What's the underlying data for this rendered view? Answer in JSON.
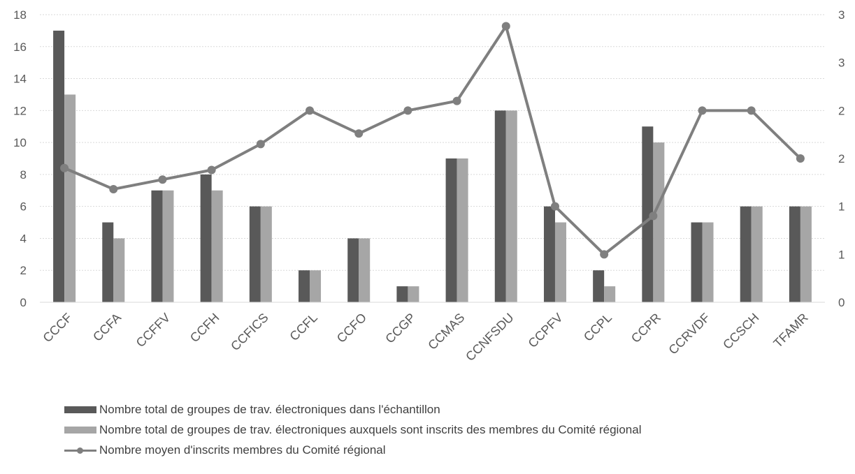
{
  "chart_data": {
    "type": "bar",
    "categories": [
      "CCCF",
      "CCFA",
      "CCFFV",
      "CCFH",
      "CCFICS",
      "CCFL",
      "CCFO",
      "CCGP",
      "CCMAS",
      "CCNFSDU",
      "CCPFV",
      "CCPL",
      "CCPR",
      "CCRVDF",
      "CCSCH",
      "TFAMR"
    ],
    "series": [
      {
        "name": "Nombre total de groupes de trav. électroniques dans  l'échantillon",
        "type": "bar",
        "axis": "left",
        "color": "#595959",
        "values": [
          17,
          5,
          7,
          8,
          6,
          2,
          4,
          1,
          9,
          12,
          6,
          2,
          11,
          5,
          6,
          6
        ]
      },
      {
        "name": "Nombre total de groupes de trav. électroniques auxquels sont inscrits des membres du Comité régional",
        "type": "bar",
        "axis": "left",
        "color": "#a6a6a6",
        "values": [
          13,
          4,
          7,
          7,
          6,
          2,
          4,
          1,
          9,
          12,
          5,
          1,
          10,
          5,
          6,
          6
        ]
      },
      {
        "name": "Nombre moyen d'inscrits membres du Comité régional",
        "type": "line",
        "axis": "right",
        "color": "#7f7f7f",
        "values": [
          1.4,
          1.18,
          1.28,
          1.38,
          1.65,
          2.0,
          1.76,
          2.0,
          2.1,
          2.88,
          1.0,
          0.5,
          0.9,
          2.0,
          2.0,
          1.5
        ]
      }
    ],
    "yaxis_left": {
      "min": 0,
      "max": 18,
      "ticks": [
        "0",
        "2",
        "4",
        "6",
        "8",
        "10",
        "12",
        "14",
        "16",
        "18"
      ]
    },
    "yaxis_right": {
      "min": 0,
      "max": 3,
      "ticks": [
        "0",
        "1",
        "1",
        "2",
        "2",
        "3",
        "3"
      ],
      "tick_values": [
        0,
        0.5,
        1,
        1.5,
        2,
        2.5,
        3
      ]
    },
    "grid": true,
    "legend_position": "bottom-left"
  }
}
